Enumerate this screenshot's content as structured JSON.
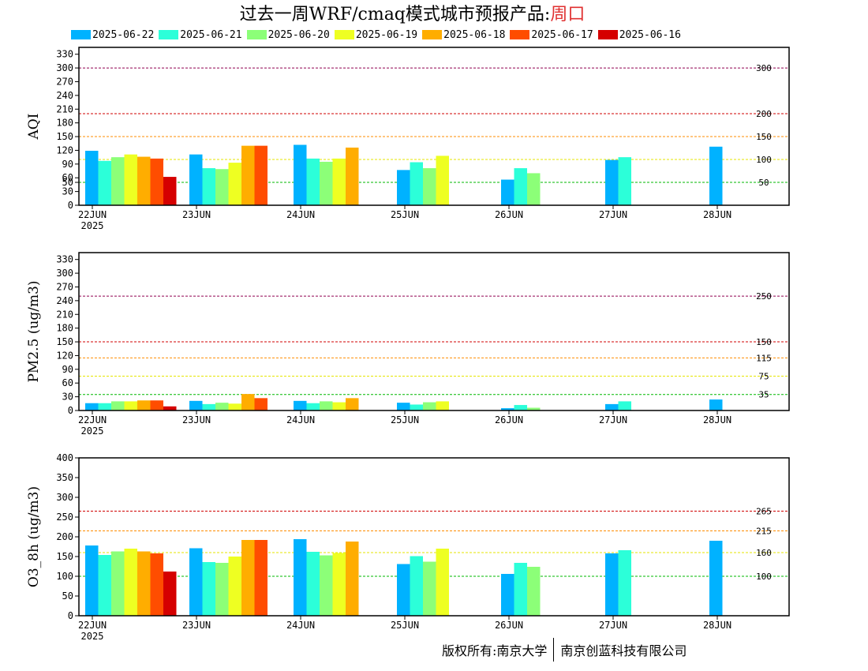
{
  "title": {
    "main": "过去一周WRF/cmaq模式城市预报产品:",
    "city": "周口"
  },
  "legend": [
    {
      "label": "2025-06-22",
      "color": "#00b2ff"
    },
    {
      "label": "2025-06-21",
      "color": "#2cffd9"
    },
    {
      "label": "2025-06-20",
      "color": "#8cff78"
    },
    {
      "label": "2025-06-19",
      "color": "#eeff22"
    },
    {
      "label": "2025-06-18",
      "color": "#ffad00"
    },
    {
      "label": "2025-06-17",
      "color": "#ff4d00"
    },
    {
      "label": "2025-06-16",
      "color": "#d50000"
    }
  ],
  "footer": {
    "left": "版权所有:南京大学",
    "right": "南京创蓝科技有限公司"
  },
  "chart_data": [
    {
      "type": "bar",
      "ylabel": "AQI",
      "ylim": [
        0,
        345
      ],
      "yticks": [
        0,
        30,
        50,
        60,
        90,
        120,
        150,
        180,
        210,
        240,
        270,
        300,
        330
      ],
      "categories": [
        "22JUN",
        "23JUN",
        "24JUN",
        "25JUN",
        "26JUN",
        "27JUN",
        "28JUN"
      ],
      "year_label": "2025",
      "thresholds": [
        {
          "value": 50,
          "label": "50",
          "color": "#00b800"
        },
        {
          "value": 100,
          "label": "100",
          "color": "#e6e600"
        },
        {
          "value": 150,
          "label": "150",
          "color": "#ff8c00"
        },
        {
          "value": 200,
          "label": "200",
          "color": "#d00000"
        },
        {
          "value": 300,
          "label": "300",
          "color": "#900050"
        }
      ],
      "groups": [
        [
          119,
          97,
          105,
          111,
          106,
          102,
          62
        ],
        [
          111,
          81,
          79,
          93,
          130,
          130
        ],
        [
          132,
          102,
          95,
          102,
          126
        ],
        [
          77,
          94,
          81,
          108
        ],
        [
          56,
          81,
          70
        ],
        [
          99,
          105
        ],
        [
          128
        ]
      ]
    },
    {
      "type": "bar",
      "ylabel": "PM2.5 (ug/m3)",
      "ylim": [
        0,
        345
      ],
      "yticks": [
        0,
        30,
        60,
        90,
        120,
        150,
        180,
        210,
        240,
        270,
        300,
        330
      ],
      "categories": [
        "22JUN",
        "23JUN",
        "24JUN",
        "25JUN",
        "26JUN",
        "27JUN",
        "28JUN"
      ],
      "year_label": "2025",
      "thresholds": [
        {
          "value": 35,
          "label": "35",
          "color": "#00b800"
        },
        {
          "value": 75,
          "label": "75",
          "color": "#e6e600"
        },
        {
          "value": 115,
          "label": "115",
          "color": "#ff8c00"
        },
        {
          "value": 150,
          "label": "150",
          "color": "#d00000"
        },
        {
          "value": 250,
          "label": "250",
          "color": "#900050"
        }
      ],
      "groups": [
        [
          16,
          16,
          20,
          20,
          22,
          22,
          9
        ],
        [
          21,
          14,
          17,
          15,
          36,
          27
        ],
        [
          21,
          16,
          20,
          18,
          27
        ],
        [
          17,
          13,
          18,
          20
        ],
        [
          5,
          12,
          6
        ],
        [
          14,
          20
        ],
        [
          24
        ]
      ]
    },
    {
      "type": "bar",
      "ylabel": "O3_8h (ug/m3)",
      "ylim": [
        0,
        400
      ],
      "yticks": [
        0,
        50,
        100,
        150,
        200,
        250,
        300,
        350,
        400
      ],
      "categories": [
        "22JUN",
        "23JUN",
        "24JUN",
        "25JUN",
        "26JUN",
        "27JUN",
        "28JUN"
      ],
      "year_label": "2025",
      "thresholds": [
        {
          "value": 100,
          "label": "100",
          "color": "#00b800"
        },
        {
          "value": 160,
          "label": "160",
          "color": "#e6e600"
        },
        {
          "value": 215,
          "label": "215",
          "color": "#ff8c00"
        },
        {
          "value": 265,
          "label": "265",
          "color": "#d00000"
        }
      ],
      "groups": [
        [
          178,
          154,
          163,
          170,
          163,
          158,
          112
        ],
        [
          171,
          136,
          134,
          150,
          192,
          192
        ],
        [
          194,
          162,
          153,
          159,
          188
        ],
        [
          131,
          151,
          137,
          170
        ],
        [
          106,
          134,
          124
        ],
        [
          158,
          166
        ],
        [
          190
        ]
      ]
    }
  ]
}
